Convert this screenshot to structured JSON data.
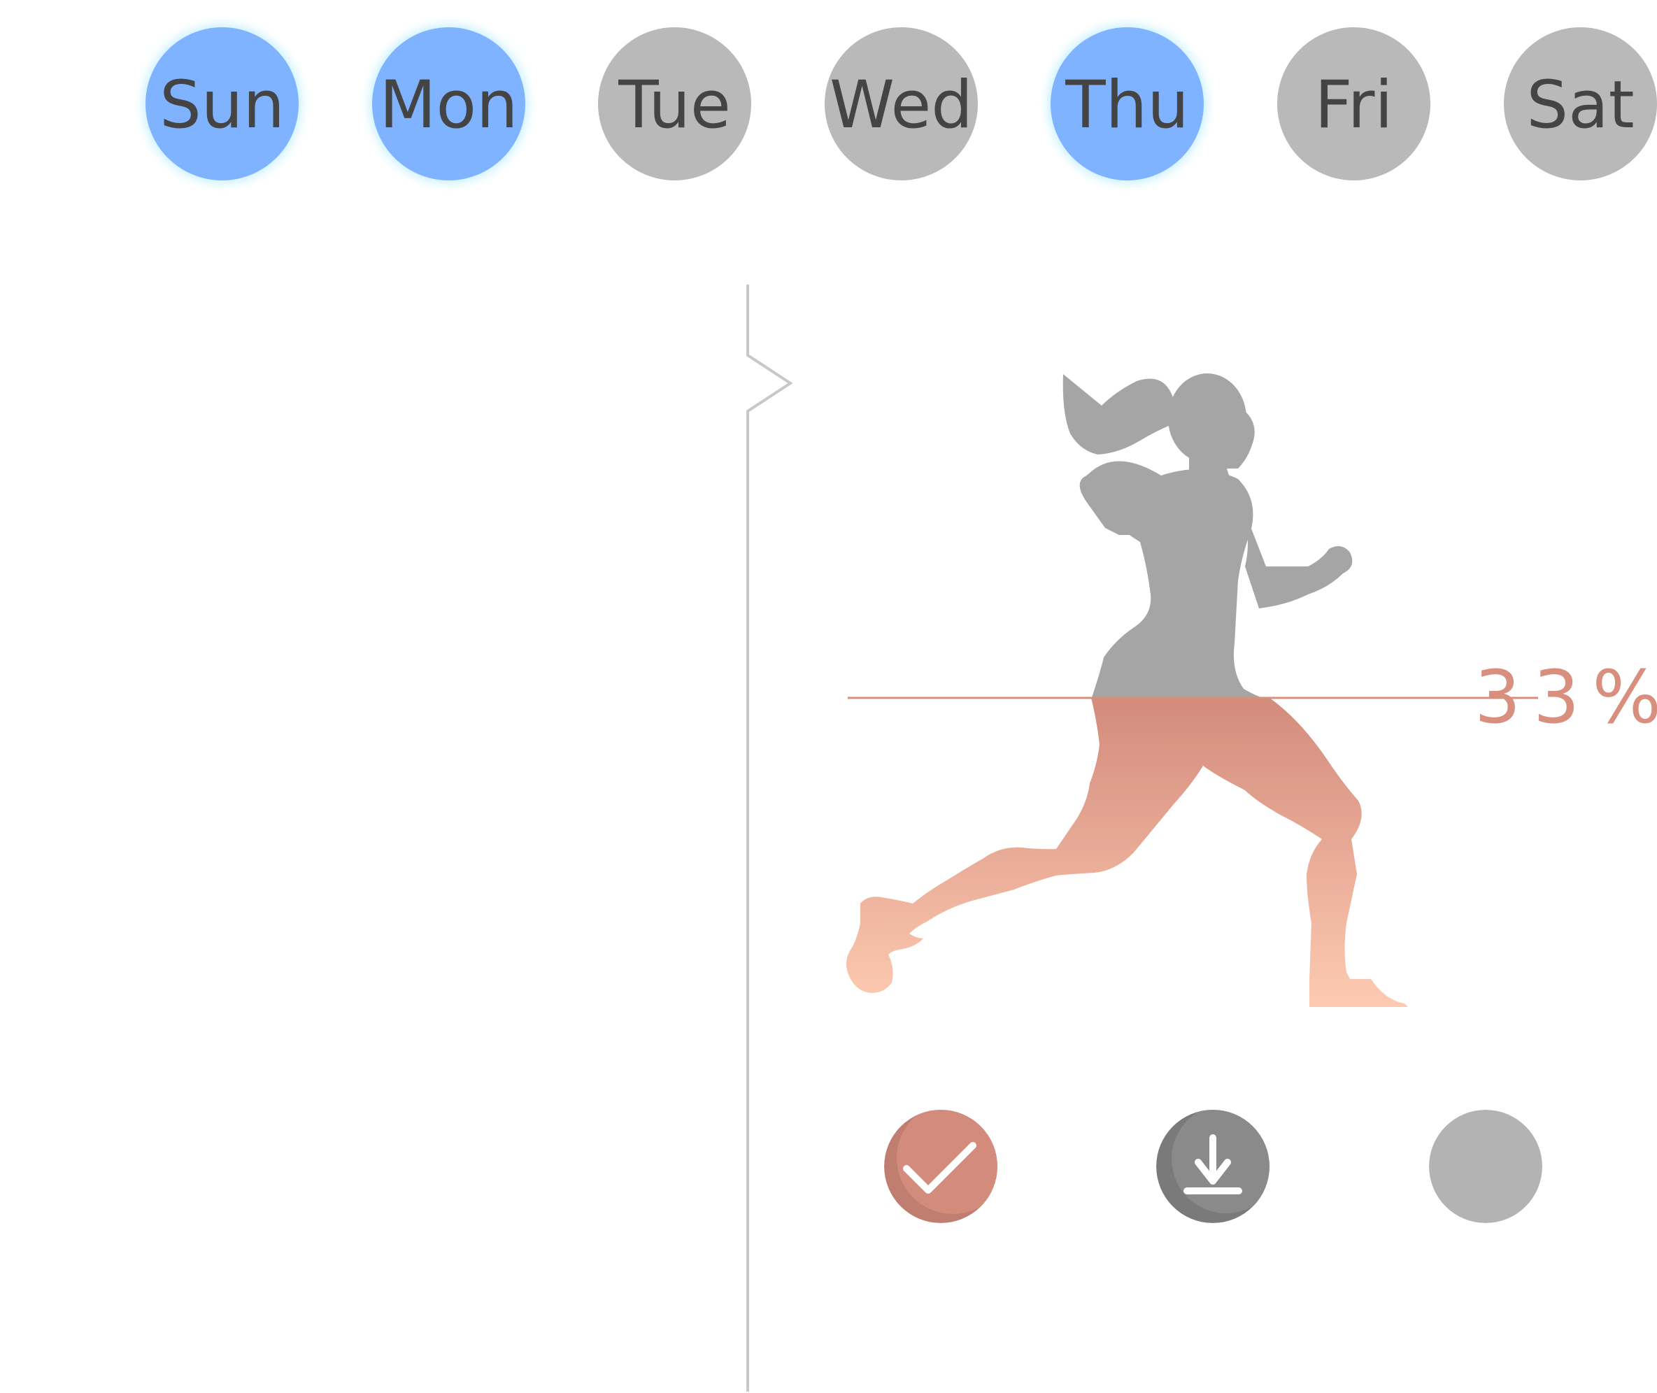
{
  "days": [
    {
      "label": "Sun",
      "selected": true
    },
    {
      "label": "Mon",
      "selected": true
    },
    {
      "label": "Tue",
      "selected": false
    },
    {
      "label": "Wed",
      "selected": false
    },
    {
      "label": "Thu",
      "selected": true
    },
    {
      "label": "Fri",
      "selected": false
    },
    {
      "label": "Sat",
      "selected": false
    }
  ],
  "progress": {
    "label": "33%",
    "fraction": 0.33
  },
  "colors": {
    "selected_day": "#80b3ff",
    "unselected_day": "#b9b9b9",
    "day_text": "#444444",
    "progress_accent": "#d88f7d",
    "runner_gray": "#a5a5a5",
    "confirm_button": "#d88f7d",
    "download_button": "#8a8a8a",
    "empty_button": "#b3b3b3"
  },
  "actions": [
    {
      "name": "confirm-button",
      "icon": "checkmark-icon"
    },
    {
      "name": "download-button",
      "icon": "download-icon"
    },
    {
      "name": "empty-button",
      "icon": ""
    }
  ]
}
